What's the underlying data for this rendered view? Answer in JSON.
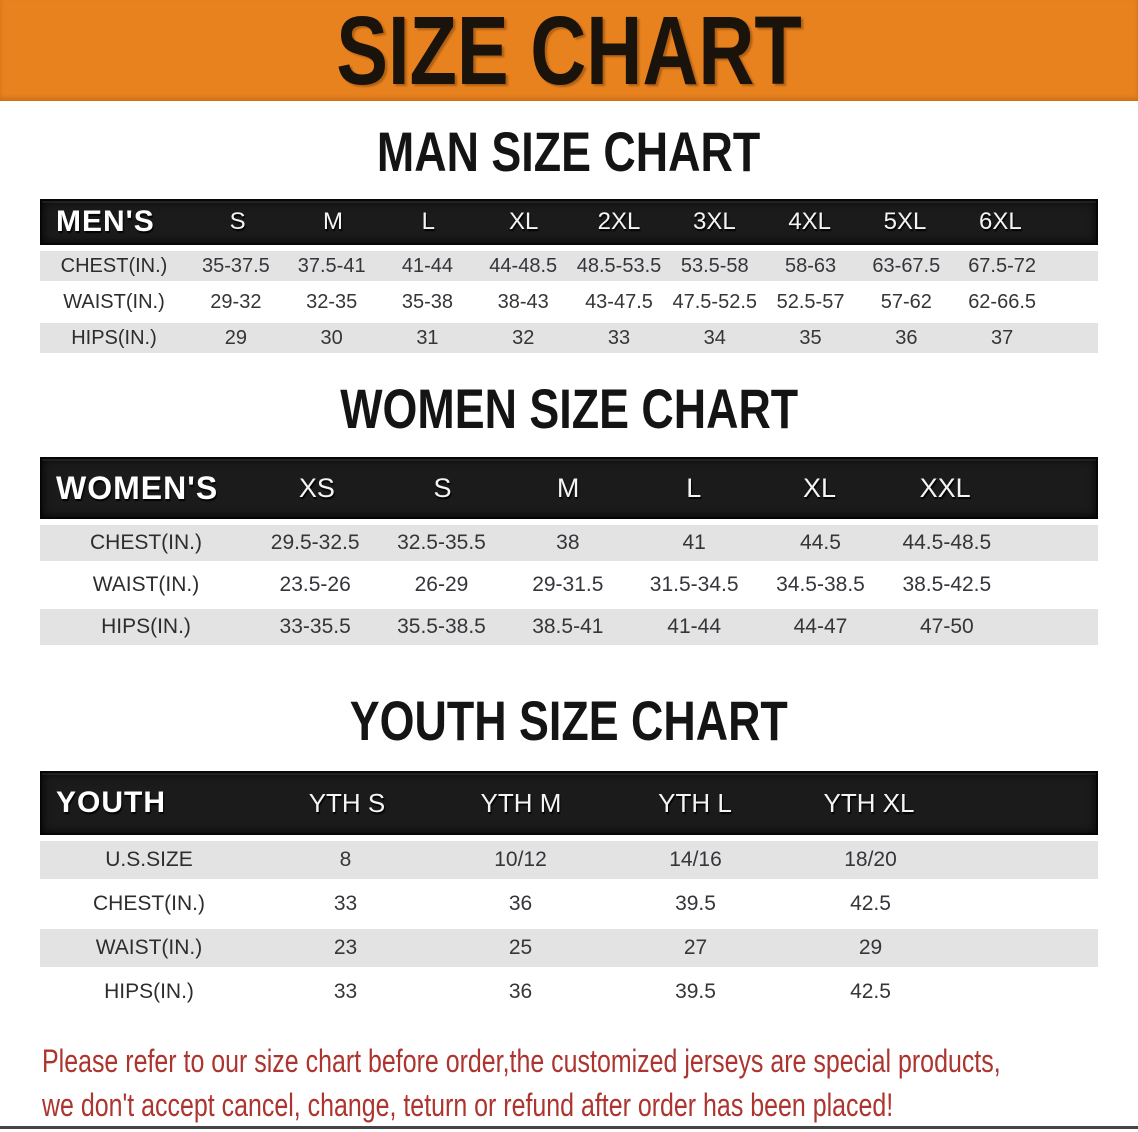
{
  "banner": {
    "title": "SIZE CHART",
    "bg": "#E8821E",
    "text_color": "#19130b"
  },
  "sections": [
    {
      "id": "men",
      "heading": "MAN SIZE CHART",
      "table": {
        "label": "MEN'S",
        "columns": [
          "S",
          "M",
          "L",
          "XL",
          "2XL",
          "3XL",
          "4XL",
          "5XL",
          "6XL"
        ],
        "rows": [
          {
            "label": "CHEST(IN.)",
            "values": [
              "35-37.5",
              "37.5-41",
              "41-44",
              "44-48.5",
              "48.5-53.5",
              "53.5-58",
              "58-63",
              "63-67.5",
              "67.5-72"
            ]
          },
          {
            "label": "WAIST(IN.)",
            "values": [
              "29-32",
              "32-35",
              "35-38",
              "38-43",
              "43-47.5",
              "47.5-52.5",
              "52.5-57",
              "57-62",
              "62-66.5"
            ]
          },
          {
            "label": "HIPS(IN.)",
            "values": [
              "29",
              "30",
              "31",
              "32",
              "33",
              "34",
              "35",
              "36",
              "37"
            ]
          }
        ]
      }
    },
    {
      "id": "women",
      "heading": "WOMEN SIZE CHART",
      "table": {
        "label": "WOMEN'S",
        "columns": [
          "XS",
          "S",
          "M",
          "L",
          "XL",
          "XXL"
        ],
        "rows": [
          {
            "label": "CHEST(IN.)",
            "values": [
              "29.5-32.5",
              "32.5-35.5",
              "38",
              "41",
              "44.5",
              "44.5-48.5"
            ]
          },
          {
            "label": "WAIST(IN.)",
            "values": [
              "23.5-26",
              "26-29",
              "29-31.5",
              "31.5-34.5",
              "34.5-38.5",
              "38.5-42.5"
            ]
          },
          {
            "label": "HIPS(IN.)",
            "values": [
              "33-35.5",
              "35.5-38.5",
              "38.5-41",
              "41-44",
              "44-47",
              "47-50"
            ]
          }
        ]
      }
    },
    {
      "id": "youth",
      "heading": "YOUTH SIZE CHART",
      "table": {
        "label": "YOUTH",
        "columns": [
          "YTH S",
          "YTH M",
          "YTH L",
          "YTH XL"
        ],
        "rows": [
          {
            "label": "U.S.SIZE",
            "values": [
              "8",
              "10/12",
              "14/16",
              "18/20"
            ]
          },
          {
            "label": "CHEST(IN.)",
            "values": [
              "33",
              "36",
              "39.5",
              "42.5"
            ]
          },
          {
            "label": "WAIST(IN.)",
            "values": [
              "23",
              "25",
              "27",
              "29"
            ]
          },
          {
            "label": "HIPS(IN.)",
            "values": [
              "33",
              "36",
              "39.5",
              "42.5"
            ]
          }
        ]
      }
    }
  ],
  "footer": {
    "line1": "Please refer to our size chart before order,the customized jerseys are special products,",
    "line2": "we don't accept cancel, change, teturn or refund after order has been placed!",
    "color": "#AC3530"
  },
  "colors": {
    "banner_orange": "#E8821E",
    "header_bar_black": "#1b1b1b",
    "shaded_row_gray": "#E3E3E3",
    "footer_red": "#AC3530"
  }
}
